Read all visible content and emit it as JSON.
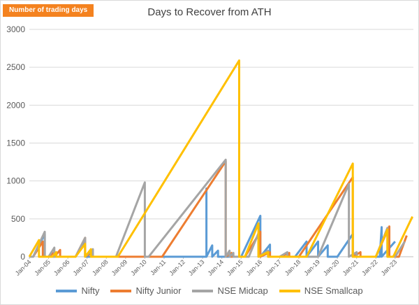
{
  "tag": "Number of trading days",
  "chart_data": {
    "type": "line",
    "title": "Days to Recover from ATH",
    "xlabel": "",
    "ylabel": "",
    "ylim": [
      0,
      3000
    ],
    "yticks": [
      0,
      500,
      1000,
      1500,
      2000,
      2500,
      3000
    ],
    "xticks": [
      "Jan-04",
      "Jan-05",
      "Jan-06",
      "Jan-07",
      "Jan-08",
      "Jan-09",
      "Jan-10",
      "Jan-11",
      "Jan-12",
      "Jan-13",
      "Jan-14",
      "Jan-15",
      "Jan-16",
      "Jan-17",
      "Jan-18",
      "Jan-19",
      "Jan-20",
      "Jan-21",
      "Jan-22",
      "Jan-23"
    ],
    "grid": true,
    "legend_position": "bottom",
    "series": [
      {
        "name": "Nifty",
        "color": "#5b9bd5",
        "points": [
          [
            2004.0,
            0
          ],
          [
            2004.2,
            0
          ],
          [
            2004.8,
            300
          ],
          [
            2004.8,
            0
          ],
          [
            2005.2,
            0
          ],
          [
            2005.5,
            0
          ],
          [
            2006.0,
            0
          ],
          [
            2006.4,
            0
          ],
          [
            2006.9,
            200
          ],
          [
            2006.9,
            0
          ],
          [
            2007.3,
            0
          ],
          [
            2007.6,
            0
          ],
          [
            2008.0,
            0
          ],
          [
            2013.2,
            0
          ],
          [
            2013.2,
            900
          ],
          [
            2013.2,
            0
          ],
          [
            2013.5,
            150
          ],
          [
            2013.5,
            0
          ],
          [
            2013.8,
            80
          ],
          [
            2013.8,
            0
          ],
          [
            2014.2,
            0
          ],
          [
            2014.2,
            0
          ],
          [
            2014.6,
            0
          ],
          [
            2014.6,
            0
          ],
          [
            2015.0,
            0
          ],
          [
            2016.0,
            540
          ],
          [
            2016.0,
            0
          ],
          [
            2016.5,
            160
          ],
          [
            2016.5,
            0
          ],
          [
            2017.0,
            0
          ],
          [
            2017.5,
            0
          ],
          [
            2017.8,
            0
          ],
          [
            2018.4,
            200
          ],
          [
            2018.4,
            0
          ],
          [
            2019.0,
            200
          ],
          [
            2019.0,
            0
          ],
          [
            2019.5,
            150
          ],
          [
            2019.5,
            0
          ],
          [
            2020.0,
            0
          ],
          [
            2020.8,
            300
          ],
          [
            2020.8,
            0
          ],
          [
            2021.0,
            0
          ],
          [
            2021.5,
            0
          ],
          [
            2022.2,
            0
          ],
          [
            2022.3,
            390
          ],
          [
            2022.3,
            0
          ],
          [
            2023.0,
            200
          ]
        ]
      },
      {
        "name": "Nifty Junior",
        "color": "#ed7d31",
        "points": [
          [
            2004.0,
            0
          ],
          [
            2004.2,
            0
          ],
          [
            2004.7,
            200
          ],
          [
            2004.7,
            0
          ],
          [
            2005.0,
            0
          ],
          [
            2005.3,
            60
          ],
          [
            2005.3,
            0
          ],
          [
            2005.6,
            90
          ],
          [
            2005.6,
            0
          ],
          [
            2006.0,
            0
          ],
          [
            2006.4,
            0
          ],
          [
            2006.9,
            250
          ],
          [
            2006.9,
            0
          ],
          [
            2007.3,
            60
          ],
          [
            2007.3,
            0
          ],
          [
            2007.8,
            0
          ],
          [
            2008.0,
            0
          ],
          [
            2010.9,
            0
          ],
          [
            2010.9,
            0
          ],
          [
            2014.2,
            1260
          ],
          [
            2014.2,
            0
          ],
          [
            2014.5,
            50
          ],
          [
            2014.5,
            0
          ],
          [
            2015.0,
            0
          ],
          [
            2015.2,
            0
          ],
          [
            2016.0,
            330
          ],
          [
            2016.0,
            0
          ],
          [
            2016.5,
            60
          ],
          [
            2016.5,
            0
          ],
          [
            2017.0,
            0
          ],
          [
            2017.5,
            50
          ],
          [
            2017.5,
            0
          ],
          [
            2018.0,
            0
          ],
          [
            2020.8,
            1050
          ],
          [
            2020.8,
            0
          ],
          [
            2021.2,
            60
          ],
          [
            2021.2,
            0
          ],
          [
            2021.6,
            0
          ],
          [
            2022.0,
            0
          ],
          [
            2022.7,
            400
          ],
          [
            2022.7,
            0
          ],
          [
            2023.2,
            0
          ],
          [
            2023.6,
            280
          ]
        ]
      },
      {
        "name": "NSE Midcap",
        "color": "#a5a5a5",
        "points": [
          [
            2004.0,
            0
          ],
          [
            2004.2,
            0
          ],
          [
            2004.8,
            330
          ],
          [
            2004.8,
            0
          ],
          [
            2005.0,
            0
          ],
          [
            2005.3,
            120
          ],
          [
            2005.3,
            0
          ],
          [
            2005.6,
            0
          ],
          [
            2006.0,
            0
          ],
          [
            2006.4,
            0
          ],
          [
            2006.9,
            250
          ],
          [
            2006.9,
            0
          ],
          [
            2007.3,
            100
          ],
          [
            2007.3,
            0
          ],
          [
            2007.8,
            0
          ],
          [
            2008.0,
            0
          ],
          [
            2008.5,
            0
          ],
          [
            2010.0,
            980
          ],
          [
            2010.0,
            0
          ],
          [
            2010.2,
            0
          ],
          [
            2014.2,
            1280
          ],
          [
            2014.2,
            0
          ],
          [
            2014.4,
            80
          ],
          [
            2014.4,
            0
          ],
          [
            2014.6,
            50
          ],
          [
            2014.6,
            0
          ],
          [
            2015.0,
            0
          ],
          [
            2015.4,
            0
          ],
          [
            2015.9,
            310
          ],
          [
            2015.9,
            0
          ],
          [
            2016.4,
            80
          ],
          [
            2016.4,
            0
          ],
          [
            2017.0,
            0
          ],
          [
            2017.4,
            60
          ],
          [
            2017.4,
            0
          ],
          [
            2018.0,
            0
          ],
          [
            2019.0,
            0
          ],
          [
            2020.6,
            960
          ],
          [
            2020.6,
            0
          ],
          [
            2021.0,
            60
          ],
          [
            2021.0,
            0
          ],
          [
            2021.5,
            0
          ],
          [
            2022.0,
            0
          ],
          [
            2022.6,
            380
          ],
          [
            2022.6,
            0
          ],
          [
            2023.0,
            0
          ],
          [
            2023.5,
            200
          ]
        ]
      },
      {
        "name": "NSE Smallcap",
        "color": "#ffc000",
        "points": [
          [
            2004.0,
            0
          ],
          [
            2004.5,
            220
          ],
          [
            2004.5,
            0
          ],
          [
            2004.8,
            0
          ],
          [
            2005.2,
            0
          ],
          [
            2005.4,
            60
          ],
          [
            2005.4,
            0
          ],
          [
            2005.7,
            0
          ],
          [
            2006.0,
            0
          ],
          [
            2006.4,
            0
          ],
          [
            2006.9,
            170
          ],
          [
            2006.9,
            0
          ],
          [
            2007.2,
            100
          ],
          [
            2007.2,
            0
          ],
          [
            2007.5,
            0
          ],
          [
            2007.8,
            0
          ],
          [
            2008.0,
            0
          ],
          [
            2008.6,
            0
          ],
          [
            2014.9,
            2590
          ],
          [
            2014.9,
            0
          ],
          [
            2015.2,
            0
          ],
          [
            2015.9,
            440
          ],
          [
            2015.9,
            0
          ],
          [
            2016.4,
            60
          ],
          [
            2016.4,
            0
          ],
          [
            2017.0,
            0
          ],
          [
            2017.4,
            0
          ],
          [
            2017.8,
            0
          ],
          [
            2018.4,
            0
          ],
          [
            2020.8,
            1230
          ],
          [
            2020.8,
            0
          ],
          [
            2021.2,
            0
          ],
          [
            2021.6,
            0
          ],
          [
            2022.0,
            0
          ],
          [
            2022.6,
            360
          ],
          [
            2022.6,
            0
          ],
          [
            2022.9,
            0
          ],
          [
            2023.9,
            530
          ]
        ]
      }
    ]
  }
}
